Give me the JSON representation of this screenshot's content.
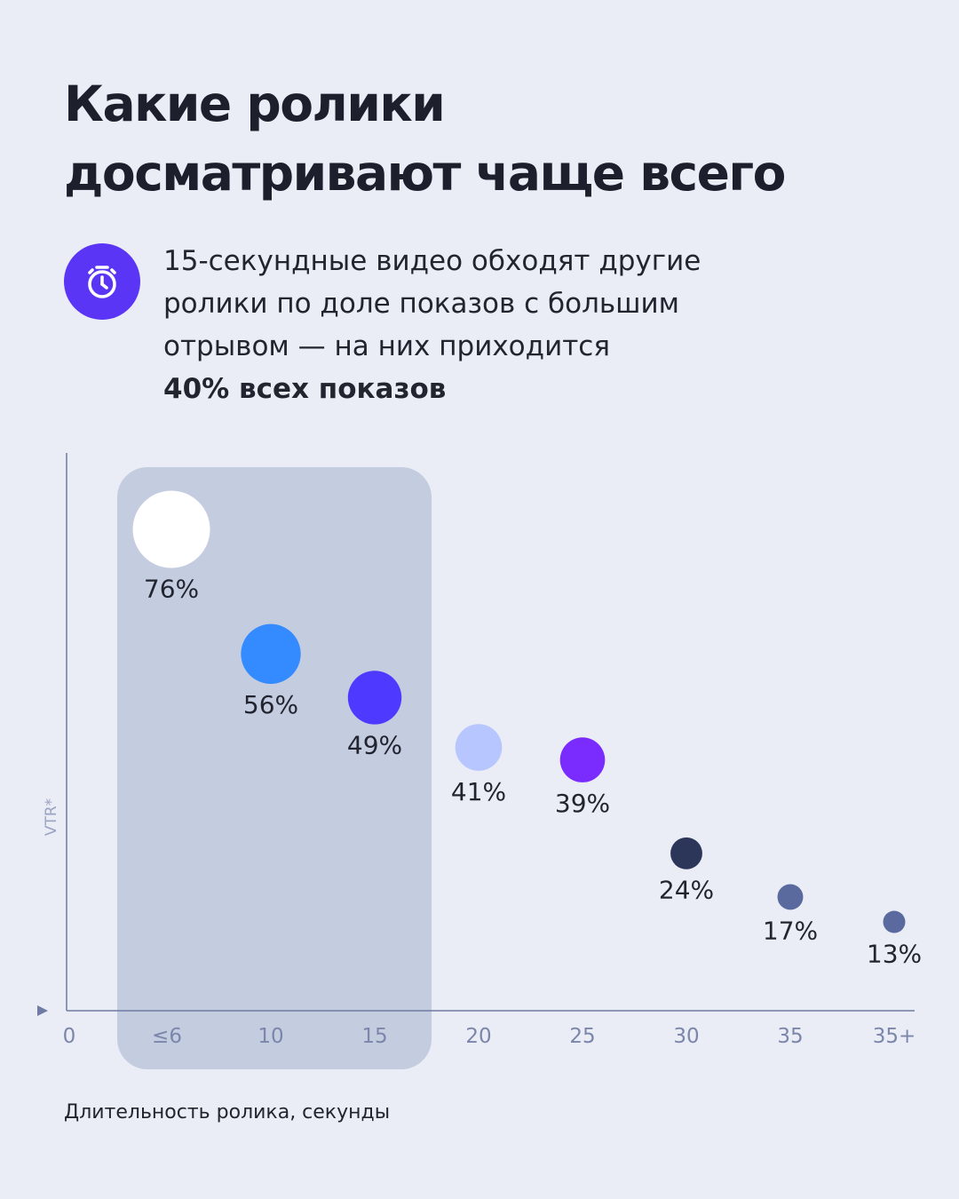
{
  "header": {
    "title_lines": [
      "Какие ролики",
      "досматривают чаще всего"
    ]
  },
  "note": {
    "icon": "stopwatch-icon",
    "lines": [
      "15-секундные видео обходят другие",
      "ролики по доле показов с большим",
      "отрывом — на них приходится"
    ],
    "highlight": "40% всех показов"
  },
  "chart_data": {
    "type": "scatter",
    "origin_label": "0",
    "categories": [
      "≤6",
      "10",
      "15",
      "20",
      "25",
      "30",
      "35",
      "35+"
    ],
    "values": [
      76,
      56,
      49,
      41,
      39,
      24,
      17,
      13
    ],
    "value_labels": [
      "76%",
      "56%",
      "49%",
      "41%",
      "39%",
      "24%",
      "17%",
      "13%"
    ],
    "point_colors": [
      "#ffffff",
      "#338bff",
      "#4d39ff",
      "#b8c6ff",
      "#7a2cff",
      "#2c3659",
      "#5a6a9e",
      "#5a6a9e"
    ],
    "highlight_categories": [
      "≤6",
      "10",
      "15"
    ],
    "ylabel": "VTR*",
    "xlabel": "Длительность ролика, секунды",
    "colors": {
      "highlight_band": "#c4cde0",
      "axis": "#6f7ba3",
      "accent": "#5b35f5"
    }
  }
}
